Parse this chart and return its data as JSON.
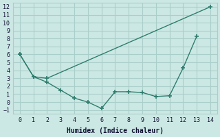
{
  "line1_x": [
    0,
    1,
    2,
    14
  ],
  "line1_y": [
    6,
    3.2,
    3.0,
    12.0
  ],
  "line2_x": [
    0,
    1,
    2,
    3,
    4,
    5,
    6,
    7,
    8,
    9,
    10,
    11,
    12,
    13
  ],
  "line2_y": [
    6,
    3.2,
    2.5,
    1.5,
    0.5,
    0.0,
    -0.8,
    1.3,
    1.3,
    1.2,
    0.7,
    0.8,
    4.3,
    8.3
  ],
  "color": "#2e7d6e",
  "bg_color": "#cce8e4",
  "grid_color": "#aaceca",
  "xlabel": "Humidex (Indice chaleur)",
  "xlim": [
    -0.5,
    14.5
  ],
  "ylim": [
    -1.5,
    12.5
  ],
  "xticks": [
    0,
    1,
    2,
    3,
    4,
    5,
    6,
    7,
    8,
    9,
    10,
    11,
    12,
    13,
    14
  ],
  "yticks": [
    -1,
    0,
    1,
    2,
    3,
    4,
    5,
    6,
    7,
    8,
    9,
    10,
    11,
    12
  ]
}
